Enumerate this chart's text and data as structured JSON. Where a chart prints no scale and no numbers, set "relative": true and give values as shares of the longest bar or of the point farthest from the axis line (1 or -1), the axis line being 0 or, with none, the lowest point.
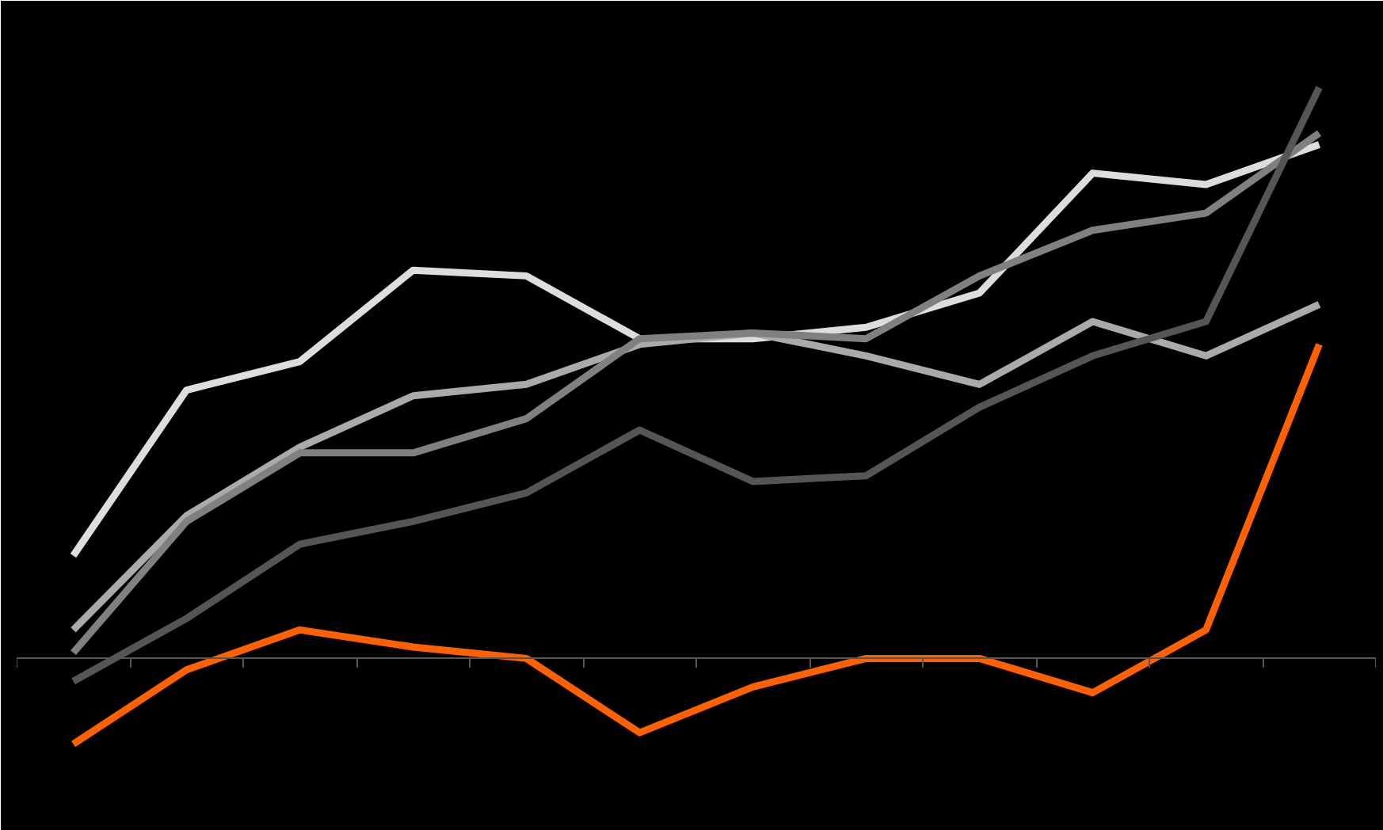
{
  "chart_data": {
    "type": "line",
    "relative": true,
    "categories": [
      null,
      null,
      null,
      null,
      null,
      null,
      null,
      null,
      null,
      null,
      null,
      null
    ],
    "grid": false,
    "series": [
      {
        "color": "#dddddd",
        "values": [
          0.18,
          0.47,
          0.52,
          0.68,
          0.67,
          0.56,
          0.56,
          0.58,
          0.64,
          0.85,
          0.83,
          0.9
        ]
      },
      {
        "color": "#aaaaaa",
        "values": [
          0.05,
          0.25,
          0.37,
          0.46,
          0.48,
          0.55,
          0.57,
          0.53,
          0.48,
          0.59,
          0.53,
          0.62
        ]
      },
      {
        "color": "#808080",
        "values": [
          0.01,
          0.24,
          0.36,
          0.36,
          0.42,
          0.56,
          0.57,
          0.56,
          0.67,
          0.75,
          0.78,
          0.92
        ]
      },
      {
        "color": "#555555",
        "values": [
          -0.04,
          0.07,
          0.2,
          0.24,
          0.29,
          0.4,
          0.31,
          0.32,
          0.44,
          0.53,
          0.59,
          1.0
        ]
      },
      {
        "color": "#ff6000",
        "values": [
          -0.15,
          -0.02,
          0.05,
          0.02,
          0.0,
          -0.13,
          -0.05,
          0.0,
          0.0,
          -0.06,
          0.05,
          0.55
        ]
      }
    ]
  }
}
